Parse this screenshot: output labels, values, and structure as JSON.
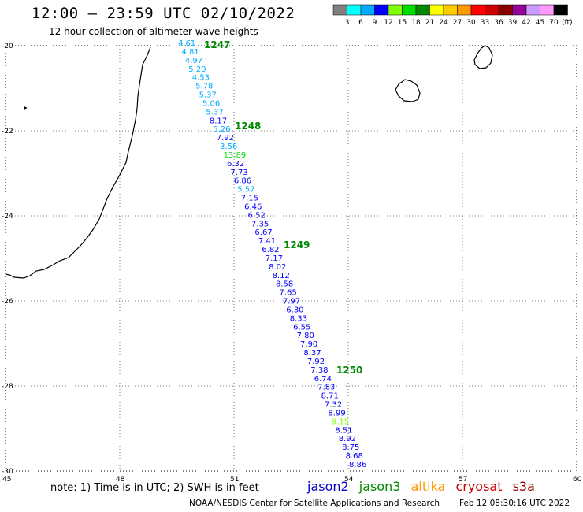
{
  "title": "12:00 — 23:59 UTC 02/10/2022",
  "subtitle": "12 hour collection of altimeter wave heights",
  "legend": {
    "colors": [
      "#808080",
      "#00ffff",
      "#00aaff",
      "#0000ff",
      "#7fff00",
      "#00dd00",
      "#008800",
      "#ffff00",
      "#ffcc00",
      "#ff9900",
      "#ff0000",
      "#cc0000",
      "#880000",
      "#990099",
      "#cc99ff",
      "#ff99ff",
      "#000000"
    ],
    "labels": [
      "3",
      "6",
      "9",
      "12",
      "15",
      "18",
      "21",
      "24",
      "27",
      "30",
      "33",
      "36",
      "39",
      "42",
      "45",
      "70"
    ],
    "unit": "(ft)"
  },
  "axes": {
    "lat_labels": [
      "-20",
      "-22",
      "-24",
      "-26",
      "-28",
      "-30"
    ],
    "lon_labels": [
      "45",
      "48",
      "51",
      "54",
      "57",
      "60"
    ]
  },
  "track": {
    "times": [
      "1247",
      "1248",
      "1249",
      "1250"
    ],
    "values": [
      "4.61",
      "4.81",
      "4.97",
      "5.20",
      "4.53",
      "5.78",
      "5.37",
      "5.06",
      "5.37",
      "8.17",
      "5.26",
      "7.92",
      "3.56",
      "13.89",
      "6.32",
      "7.73",
      "6.86",
      "5.57",
      "7.15",
      "6.46",
      "6.52",
      "7.35",
      "6.67",
      "7.41",
      "6.82",
      "7.17",
      "8.02",
      "8.12",
      "8.58",
      "7.65",
      "7.97",
      "6.30",
      "8.33",
      "6.55",
      "7.80",
      "7.90",
      "8.37",
      "7.92",
      "7.38",
      "6.74",
      "7.83",
      "8.71",
      "7.32",
      "8.99",
      "9.15",
      "8.51",
      "8.92",
      "8.75",
      "8.68",
      "8.86"
    ]
  },
  "note": "note: 1) Time is in UTC; 2) SWH is in feet",
  "satellites": [
    {
      "name": "jason2",
      "color": "#0000cc"
    },
    {
      "name": "jason3",
      "color": "#008800"
    },
    {
      "name": "altika",
      "color": "#ff9900"
    },
    {
      "name": "cryosat",
      "color": "#cc0000"
    },
    {
      "name": "s3a",
      "color": "#990000"
    }
  ],
  "credit": "NOAA/NESDIS Center for Satellite Applications and Research",
  "timestamp": "Feb 12 08:30:16 UTC 2022"
}
